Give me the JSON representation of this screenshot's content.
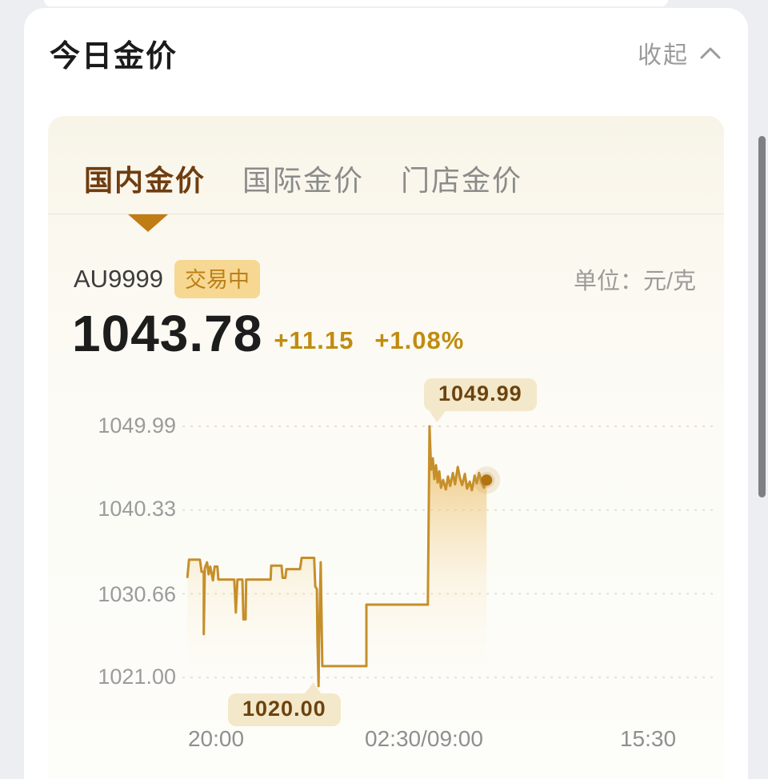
{
  "header": {
    "title": "今日金价",
    "collapse_label": "收起"
  },
  "tabs": [
    {
      "label": "国内金价",
      "active": true
    },
    {
      "label": "国际金价",
      "active": false
    },
    {
      "label": "门店金价",
      "active": false
    }
  ],
  "quote": {
    "symbol": "AU9999",
    "status_badge": "交易中",
    "unit_label": "单位：元/克",
    "price": "1043.78",
    "change": "+11.15",
    "change_pct": "+1.08%"
  },
  "colors": {
    "line": "#c68f2b",
    "dot": "#b27413",
    "accent_triangle": "#c07c15",
    "badge_bg": "#f6d892",
    "badge_text": "#bd7f16",
    "change_text": "#c08c10",
    "tooltip_bg": "#f3e8ca",
    "tooltip_text": "#6b430f"
  },
  "chart_data": {
    "type": "line",
    "style": "step-intraday with gradient area fill",
    "unit": "元/克",
    "grid": true,
    "y_ticks": [
      1049.99,
      1040.33,
      1030.66,
      1021.0
    ],
    "y_ticks_fmt": [
      "1049.99",
      "1040.33",
      "1030.66",
      "1021.00"
    ],
    "ylim": [
      1020.0,
      1049.99
    ],
    "x_labels": [
      "20:00",
      "02:30/09:00",
      "15:30"
    ],
    "high_annotation": "1049.99",
    "low_annotation": "1020.00",
    "last_value": 1043.78,
    "points": [
      [
        0.021,
        1032.6
      ],
      [
        0.024,
        1034.6
      ],
      [
        0.044,
        1034.6
      ],
      [
        0.047,
        1033.2
      ],
      [
        0.051,
        1033.2
      ],
      [
        0.051,
        1026.0
      ],
      [
        0.053,
        1033.6
      ],
      [
        0.057,
        1034.3
      ],
      [
        0.06,
        1032.9
      ],
      [
        0.063,
        1033.8
      ],
      [
        0.068,
        1032.2
      ],
      [
        0.071,
        1033.8
      ],
      [
        0.076,
        1033.8
      ],
      [
        0.078,
        1032.3
      ],
      [
        0.107,
        1032.3
      ],
      [
        0.11,
        1028.5
      ],
      [
        0.113,
        1032.3
      ],
      [
        0.122,
        1032.3
      ],
      [
        0.124,
        1027.7
      ],
      [
        0.128,
        1027.7
      ],
      [
        0.129,
        1032.3
      ],
      [
        0.174,
        1032.3
      ],
      [
        0.175,
        1033.9
      ],
      [
        0.194,
        1033.9
      ],
      [
        0.196,
        1032.5
      ],
      [
        0.201,
        1032.5
      ],
      [
        0.203,
        1033.5
      ],
      [
        0.228,
        1033.5
      ],
      [
        0.231,
        1034.8
      ],
      [
        0.254,
        1034.8
      ],
      [
        0.256,
        1031.5
      ],
      [
        0.259,
        1031.2
      ],
      [
        0.26,
        1025.5
      ],
      [
        0.262,
        1020.0
      ],
      [
        0.263,
        1025.0
      ],
      [
        0.266,
        1034.3
      ],
      [
        0.269,
        1022.3
      ],
      [
        0.35,
        1022.3
      ],
      [
        0.35,
        1029.4
      ],
      [
        0.463,
        1029.4
      ],
      [
        0.466,
        1049.99
      ],
      [
        0.469,
        1045.0
      ],
      [
        0.472,
        1046.3
      ],
      [
        0.475,
        1043.9
      ],
      [
        0.478,
        1045.5
      ],
      [
        0.481,
        1043.5
      ],
      [
        0.484,
        1044.8
      ],
      [
        0.487,
        1042.9
      ],
      [
        0.491,
        1043.8
      ],
      [
        0.496,
        1042.7
      ],
      [
        0.5,
        1044.2
      ],
      [
        0.504,
        1043.1
      ],
      [
        0.509,
        1044.6
      ],
      [
        0.513,
        1043.3
      ],
      [
        0.518,
        1045.3
      ],
      [
        0.522,
        1044.0
      ],
      [
        0.526,
        1043.2
      ],
      [
        0.531,
        1044.5
      ],
      [
        0.535,
        1042.8
      ],
      [
        0.54,
        1043.6
      ],
      [
        0.544,
        1042.6
      ],
      [
        0.549,
        1044.3
      ],
      [
        0.553,
        1043.4
      ],
      [
        0.557,
        1044.6
      ],
      [
        0.562,
        1043.5
      ],
      [
        0.566,
        1042.9
      ],
      [
        0.571,
        1043.78
      ]
    ]
  }
}
